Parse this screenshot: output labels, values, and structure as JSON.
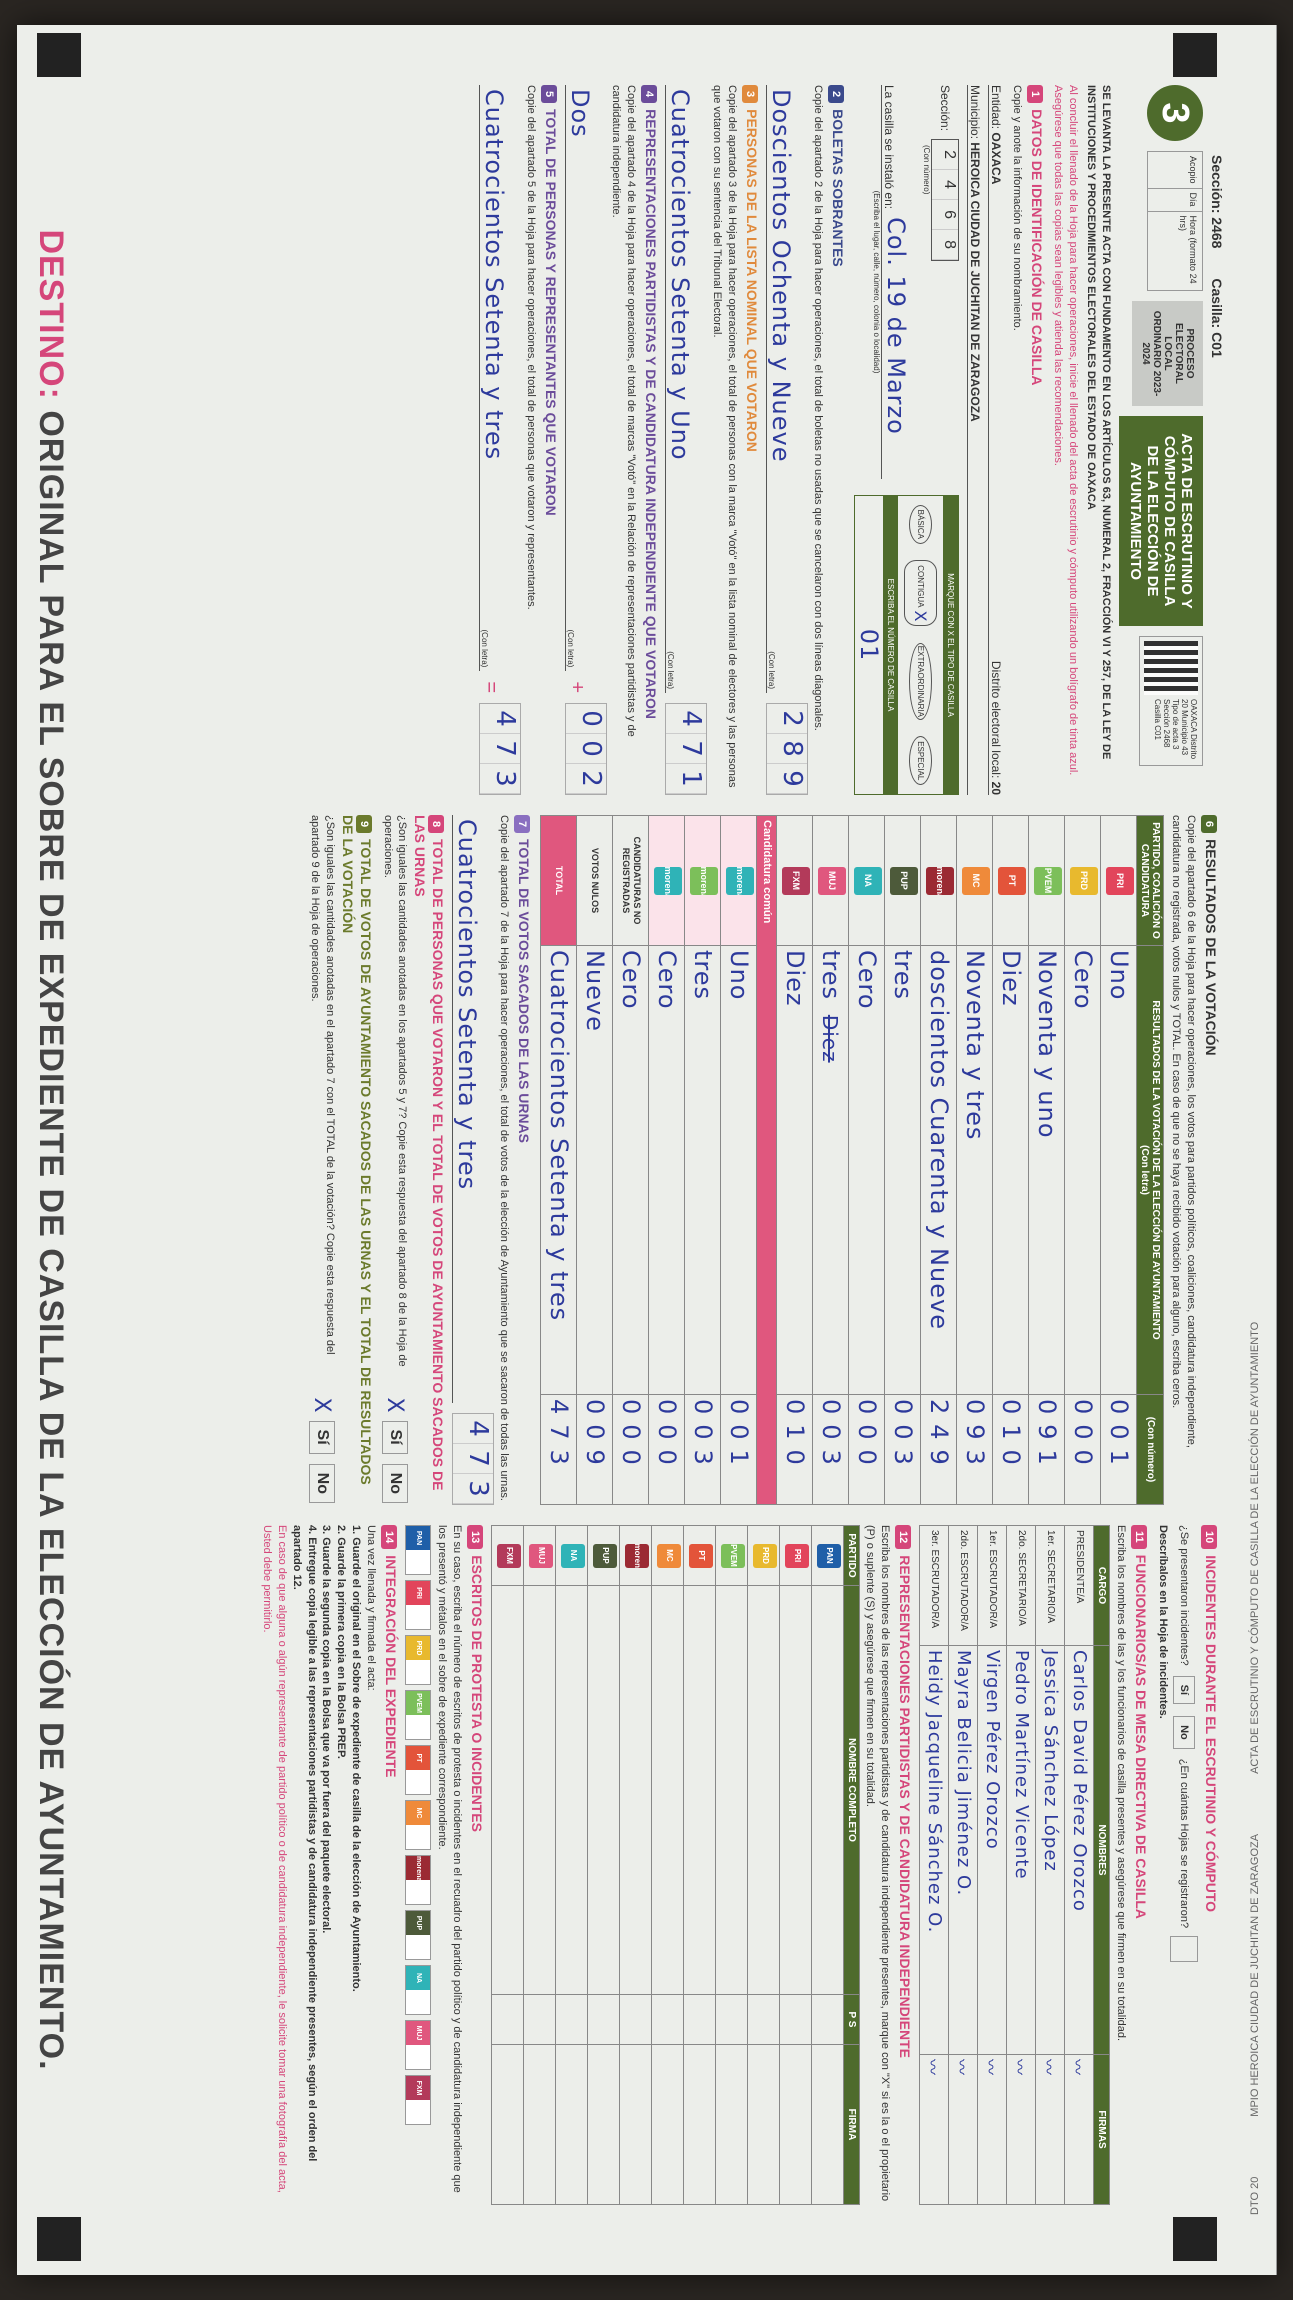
{
  "stamp": {
    "distrito": "DTO 20",
    "municipio": "MPIO HEROICA CIUDAD DE JUCHITAN DE ZARAGOZA",
    "acta": "ACTA DE ESCRUTINIO Y CÓMPUTO DE CASILLA DE LA ELECCIÓN DE AYUNTAMIENTO"
  },
  "header": {
    "seccion_label": "Sección: 2468",
    "casilla_label": "Casilla: C01",
    "acopio": "Acopio",
    "dia": "Día",
    "hora": "Hora (formato 24 hrs)",
    "number": "3",
    "proceso": "PROCESO ELECTORAL LOCAL ORDINARIO 2023-2024",
    "title": "ACTA DE ESCRUTINIO Y CÓMPUTO DE CASILLA DE LA ELECCIÓN DE AYUNTAMIENTO",
    "qr_text": "OAXACA Distrito 20 Municipio 43 Tipo de acta 3 Sección 2468 Casilla C01",
    "fundamento": "SE LEVANTA LA PRESENTE ACTA CON FUNDAMENTO EN LOS ARTÍCULOS 63, NUMERAL 2, FRACCIÓN VI Y 257, DE LA LEY DE INSTITUCIONES Y PROCEDIMIENTOS ELECTORALES DEL ESTADO DE OAXACA",
    "aviso": "Al concluir el llenado de la Hoja para hacer operaciones, inicie el llenado del acta de escrutinio y cómputo utilizando un bolígrafo de tinta azul. Asegúrese que todas las copias sean legibles y atienda las recomendaciones."
  },
  "datos": {
    "title": "DATOS DE IDENTIFICACIÓN DE CASILLA",
    "badge": "1",
    "instruction": "Copie y anote la información de su nombramiento.",
    "entidad_label": "Entidad:",
    "entidad": "OAXACA",
    "distrito_label": "Distrito electoral local:",
    "distrito": "20",
    "municipio_label": "Municipio:",
    "municipio": "HEROICA CIUDAD DE JUCHITAN DE ZARAGOZA",
    "seccion_label": "Sección:",
    "seccion_digits": [
      "2",
      "4",
      "6",
      "8"
    ],
    "con_numero": "(Con número)",
    "instalo_label": "La casilla se instaló en:",
    "instalo": "Col. 19 de Marzo",
    "instalo_hint": "(Escriba el lugar, calle, número, colonia o localidad)",
    "tipo_label": "MARQUE CON X EL TIPO DE CASILLA",
    "tipos": [
      "BÁSICA",
      "CONTIGUA",
      "EXTRAORDINARIA",
      "ESPECIAL"
    ],
    "tipo_marcado": "X",
    "numero_label": "ESCRIBA EL NÚMERO DE CASILLA",
    "numero": "01"
  },
  "left_sections": [
    {
      "badge": "2",
      "title": "BOLETAS SOBRANTES",
      "text": "Copie del apartado 2 de la Hoja para hacer operaciones, el total de boletas no usadas que se cancelaron con dos líneas diagonales.",
      "letra": "Doscientos Ochenta y Nueve",
      "numero": [
        "2",
        "8",
        "9"
      ],
      "color": "#3b4a8c"
    },
    {
      "badge": "3",
      "title": "PERSONAS DE LA LISTA NOMINAL QUE VOTARON",
      "text": "Copie del apartado 3 de la Hoja para hacer operaciones, el total de personas con la marca \"Votó\" en la lista nominal de electores y las personas que votaron con su sentencia del Tribunal Electoral.",
      "letra": "Cuatrocientos Setenta y Uno",
      "numero": [
        "4",
        "7",
        "1"
      ],
      "color": "#e08a3c"
    },
    {
      "badge": "4",
      "title": "REPRESENTACIONES PARTIDISTAS Y DE CANDIDATURA INDEPENDIENTE QUE VOTARON",
      "text": "Copie del apartado 4 de la Hoja para hacer operaciones, el total de marcas \"Votó\" en la Relación de representaciones partidistas y de candidatura independiente.",
      "letra": "Dos",
      "numero": [
        "0",
        "0",
        "2"
      ],
      "color": "#6b4c9a",
      "op": "+"
    },
    {
      "badge": "5",
      "title": "TOTAL DE PERSONAS Y REPRESENTANTES QUE VOTARON",
      "text": "Copie del apartado 5 de la Hoja para hacer operaciones, el total de personas que votaron y representantes.",
      "letra": "Cuatrocientos Setenta y tres",
      "numero": [
        "4",
        "7",
        "3"
      ],
      "color": "#6b4c9a",
      "op": "="
    }
  ],
  "labels": {
    "con_letra": "(Con letra)",
    "con_numero": "(Con número)"
  },
  "resultados": {
    "badge": "6",
    "title": "RESULTADOS DE LA VOTACIÓN",
    "text": "Copie del apartado 6 de la Hoja para hacer operaciones, los votos para partidos políticos, coaliciones, candidatura independiente, candidatura no registrada, votos nulos y TOTAL. En caso de que no se haya recibido votación para alguno, escriba ceros.",
    "col_party": "PARTIDO, COALICIÓN O CANDIDATURA",
    "col_result": "RESULTADOS DE LA VOTACIÓN DE LA ELECCIÓN DE AYUNTAMIENTO",
    "col_letra": "(Con letra)",
    "col_numero": "(Con número)",
    "candidatura_comun": "Candidatura común",
    "rows": [
      {
        "party": "PRI",
        "color": "#e2455b",
        "letra": "Uno",
        "numero": "001"
      },
      {
        "party": "PRD",
        "color": "#e8b92e",
        "letra": "Cero",
        "numero": "000"
      },
      {
        "party": "PVEM",
        "color": "#7cbf5a",
        "letra": "Noventa y uno",
        "numero": "091"
      },
      {
        "party": "PT",
        "color": "#e3543a",
        "letra": "Diez",
        "numero": "010"
      },
      {
        "party": "MC",
        "color": "#ef8a3a",
        "letra": "Noventa y tres",
        "numero": "093"
      },
      {
        "party": "morena",
        "color": "#9b2a33",
        "letra": "doscientos Cuarenta y Nueve",
        "numero": "249"
      },
      {
        "party": "PUP",
        "color": "#4d5a3a",
        "letra": "tres",
        "numero": "003"
      },
      {
        "party": "NA",
        "color": "#2fb3b7",
        "letra": "Cero",
        "numero": "000"
      },
      {
        "party": "MUJ",
        "color": "#e0577e",
        "letra": "tres",
        "crossed": "Diez",
        "numero": "003"
      },
      {
        "party": "FXM",
        "color": "#b33a5a",
        "letra": "Diez",
        "numero": "010"
      },
      {
        "party": "morena+NA",
        "color": "#2fb3b7",
        "letra": "Uno",
        "numero": "001",
        "comun": true
      },
      {
        "party": "morena+PVEM",
        "color": "#7cbf5a",
        "letra": "tres",
        "numero": "003",
        "comun": true
      },
      {
        "party": "morena+NA",
        "color": "#2fb3b7",
        "letra": "Cero",
        "numero": "000",
        "comun": true
      },
      {
        "party": "CANDIDATURAS NO REGISTRADAS",
        "color": "",
        "letra": "Cero",
        "numero": "000"
      },
      {
        "party": "VOTOS NULOS",
        "color": "",
        "letra": "Nueve",
        "numero": "009"
      },
      {
        "party": "TOTAL",
        "color": "#e0577e",
        "letra": "Cuatrocientos Setenta y tres",
        "numero": "473"
      }
    ]
  },
  "sacados": {
    "badge": "7",
    "title": "TOTAL DE VOTOS SACADOS DE LAS URNAS",
    "text": "Copie del apartado 7 de la Hoja para hacer operaciones, el total de votos de la elección de Ayuntamiento que se sacaron de todas las urnas.",
    "letra": "Cuatrocientos Setenta y tres",
    "numero": [
      "4",
      "7",
      "3"
    ]
  },
  "q8": {
    "badge": "8",
    "title": "TOTAL DE PERSONAS QUE VOTARON Y EL TOTAL DE VOTOS DE AYUNTAMIENTO SACADOS DE LAS URNAS",
    "text": "¿Son iguales las cantidades anotadas en los apartados 5 y 7? Copie esta respuesta del apartado 8 de la Hoja de operaciones.",
    "si": "Sí",
    "no": "No",
    "marked": "X"
  },
  "q9": {
    "badge": "9",
    "title": "TOTAL DE VOTOS DE AYUNTAMIENTO SACADOS DE LAS URNAS Y EL TOTAL DE RESULTADOS DE LA VOTACIÓN",
    "text": "¿Son iguales las cantidades anotadas en el apartado 7 con el TOTAL de la votación? Copie esta respuesta del apartado 9 de la Hoja de operaciones.",
    "si": "Sí",
    "no": "No",
    "marked": "X"
  },
  "incidentes": {
    "badge": "10",
    "title": "INCIDENTES DURANTE EL ESCRUTINIO Y CÓMPUTO",
    "question": "¿Se presentaron incidentes?",
    "si": "Sí",
    "no": "No",
    "describe": "Descríbalos en la Hoja de incidentes.",
    "hojas_q": "¿En cuántas Hojas se registraron?"
  },
  "funcionarios": {
    "badge": "11",
    "title": "FUNCIONARIOS/AS DE MESA DIRECTIVA DE CASILLA",
    "text": "Escriba los nombres de las y los funcionarios de casilla presentes y asegúrese que firmen en su totalidad.",
    "col_cargo": "CARGO",
    "col_nombre": "NOMBRES",
    "col_firma": "FIRMAS",
    "rows": [
      {
        "cargo": "PRESIDENTE/A",
        "nombre": "Carlos David Pérez Orozco"
      },
      {
        "cargo": "1er. SECRETARIO/A",
        "nombre": "Jessica Sánchez López"
      },
      {
        "cargo": "2do. SECRETARIO/A",
        "nombre": "Pedro Martínez Vicente"
      },
      {
        "cargo": "1er. ESCRUTADOR/A",
        "nombre": "Virgen Pérez Orozco"
      },
      {
        "cargo": "2do. ESCRUTADOR/A",
        "nombre": "Mayra Belicia Jiménez O."
      },
      {
        "cargo": "3er. ESCRUTADOR/A",
        "nombre": "Heidy Jacqueline Sánchez O."
      }
    ]
  },
  "representaciones": {
    "badge": "12",
    "title": "REPRESENTACIONES PARTIDISTAS Y DE CANDIDATURA INDEPENDIENTE",
    "text": "Escriba los nombres de las representaciones partidistas y de candidatura independiente presentes, marque con \"X\" si es la o el propietario (P) o suplente (S) y asegúrese que firmen en su totalidad.",
    "col_partido": "PARTIDO",
    "col_nombre": "NOMBRE COMPLETO",
    "col_ps": "P S",
    "col_firma": "FIRMA",
    "parties": [
      {
        "n": "PAN",
        "c": "#1f5fa8"
      },
      {
        "n": "PRI",
        "c": "#e2455b"
      },
      {
        "n": "PRD",
        "c": "#e8b92e"
      },
      {
        "n": "PVEM",
        "c": "#7cbf5a"
      },
      {
        "n": "PT",
        "c": "#e3543a"
      },
      {
        "n": "MC",
        "c": "#ef8a3a"
      },
      {
        "n": "morena",
        "c": "#9b2a33"
      },
      {
        "n": "PUP",
        "c": "#4d5a3a"
      },
      {
        "n": "NA",
        "c": "#2fb3b7"
      },
      {
        "n": "MUJ",
        "c": "#e0577e"
      },
      {
        "n": "FXM",
        "c": "#b33a5a"
      }
    ]
  },
  "escritos": {
    "badge": "13",
    "title": "ESCRITOS DE PROTESTA O INCIDENTES",
    "text": "En su caso, escriba el número de escritos de protesta o incidentes en el recuadro del partido político y de candidatura independiente que los presentó y métalos en el sobre de expediente correspondiente."
  },
  "integracion": {
    "badge": "14",
    "title": "INTEGRACIÓN DEL EXPEDIENTE",
    "intro": "Una vez llenada y firmada el acta:",
    "steps": [
      "1. Guarde el original en el Sobre de expediente de casilla de la elección de Ayuntamiento.",
      "2. Guarde la primera copia en la Bolsa PREP.",
      "3. Guarde la segunda copia en la Bolsa que va por fuera del paquete electoral.",
      "4. Entregue copia legible a las representaciones partidistas y de candidatura independiente presentes, según el orden del apartado 12."
    ],
    "note": "En caso de que alguna o algún representante de partido político o de candidatura independiente, le solicite tomar una fotografía del acta, Usted debe permitirlo."
  },
  "destino": {
    "label": "DESTINO:",
    "text": " ORIGINAL PARA EL SOBRE DE EXPEDIENTE DE CASILLA DE LA ELECCIÓN DE AYUNTAMIENTO."
  }
}
